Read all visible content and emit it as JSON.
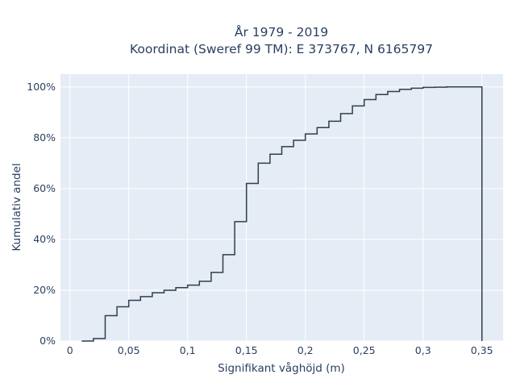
{
  "chart_data": {
    "type": "line",
    "line_shape": "step",
    "title_line1": "År 1979 - 2019",
    "title_line2": "Koordinat (Sweref 99 TM): E 373767, N 6165797",
    "xlabel": "Signifikant våghöjd (m)",
    "ylabel": "Kumulativ andel",
    "xlim": [
      -0.008,
      0.368
    ],
    "ylim": [
      0,
      1.05
    ],
    "x_ticks": [
      0,
      0.05,
      0.1,
      0.15,
      0.2,
      0.25,
      0.3,
      0.35
    ],
    "x_tick_labels": [
      "0",
      "0,05",
      "0,1",
      "0,15",
      "0,2",
      "0,25",
      "0,3",
      "0,35"
    ],
    "y_ticks": [
      0,
      0.2,
      0.4,
      0.6,
      0.8,
      1.0
    ],
    "y_tick_labels": [
      "0%",
      "20%",
      "40%",
      "60%",
      "80%",
      "100%"
    ],
    "grid": true,
    "background_color": "#e5ecf6",
    "grid_color": "#ffffff",
    "line_color": "#2f3e4c",
    "series": [
      {
        "x": [
          0.01,
          0.02,
          0.03,
          0.04,
          0.05,
          0.06,
          0.07,
          0.08,
          0.09,
          0.1,
          0.11,
          0.12,
          0.13,
          0.14,
          0.15,
          0.16,
          0.17,
          0.18,
          0.19,
          0.2,
          0.21,
          0.22,
          0.23,
          0.24,
          0.25,
          0.26,
          0.27,
          0.28,
          0.29,
          0.3,
          0.31,
          0.32,
          0.33,
          0.34,
          0.35,
          0.35
        ],
        "y": [
          0.0,
          0.01,
          0.1,
          0.135,
          0.16,
          0.175,
          0.19,
          0.2,
          0.21,
          0.22,
          0.235,
          0.27,
          0.34,
          0.47,
          0.62,
          0.7,
          0.735,
          0.765,
          0.79,
          0.815,
          0.84,
          0.865,
          0.895,
          0.925,
          0.95,
          0.97,
          0.982,
          0.99,
          0.995,
          0.998,
          0.999,
          1.0,
          1.0,
          1.0,
          1.0,
          0.0
        ]
      }
    ]
  }
}
